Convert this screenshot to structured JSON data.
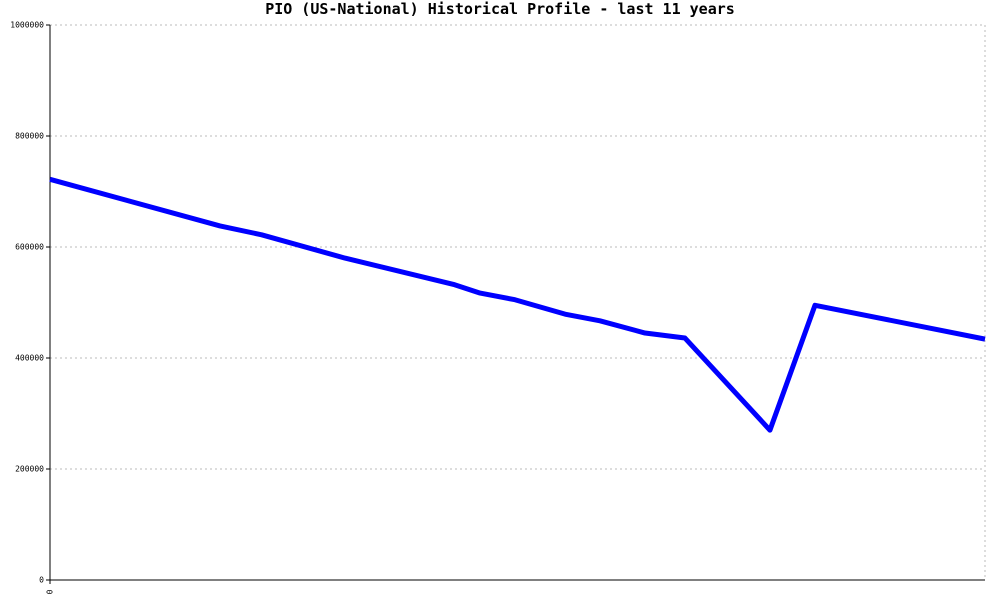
{
  "chart_data": {
    "type": "line",
    "title": "PIO (US-National) Historical Profile - last 11 years",
    "x": [
      0,
      2.0,
      2.49,
      3.47,
      4.76,
      5.06,
      5.47,
      6.06,
      6.47,
      7.0,
      7.47,
      8.47,
      9.0,
      11
    ],
    "series": [
      {
        "name": "PIO",
        "color": "#0000ff",
        "values": [
          722000,
          638000,
          622000,
          580000,
          532000,
          517000,
          505000,
          479000,
          467000,
          445000,
          436000,
          270000,
          495000,
          434000
        ]
      }
    ],
    "xlim": [
      0,
      11
    ],
    "xticks": [
      0
    ],
    "ylim": [
      0,
      1000000
    ],
    "yticks": [
      0,
      200000,
      400000,
      600000,
      800000,
      1000000
    ],
    "grid": true,
    "legend": false
  }
}
